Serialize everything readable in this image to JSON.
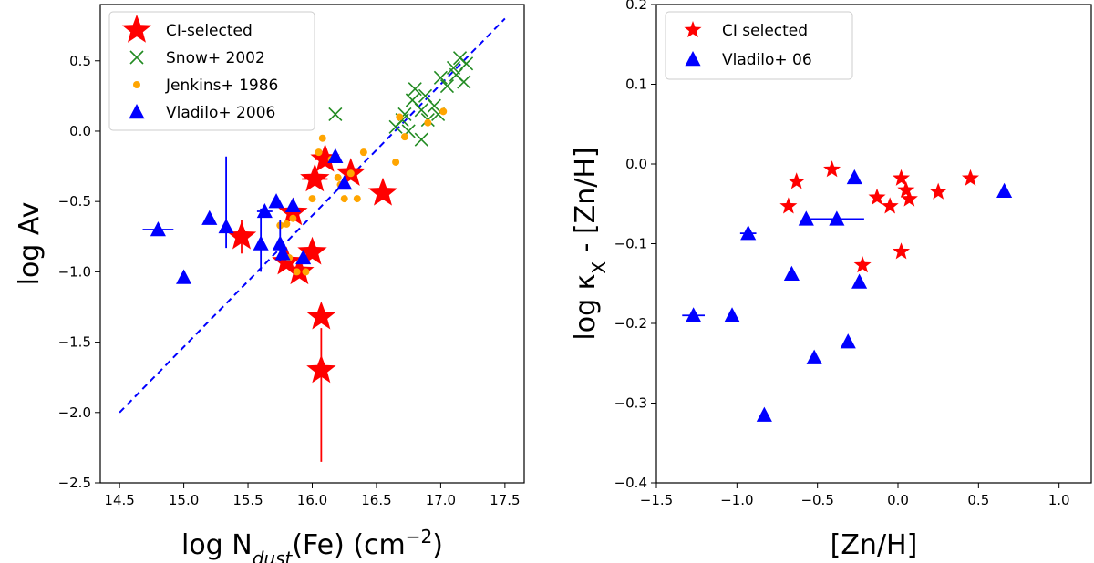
{
  "chart_data": [
    {
      "type": "scatter",
      "xlabel": "log N_dust(Fe) (cm^-2)",
      "xlabel_parts": {
        "pre": "log N",
        "sub": "dust",
        "mid": "(Fe) (cm",
        "sup": "−2",
        "post": ")"
      },
      "ylabel": "log Av",
      "xlim": [
        14.35,
        17.65
      ],
      "ylim": [
        -2.5,
        0.9
      ],
      "xticks": [
        14.5,
        15.0,
        15.5,
        16.0,
        16.5,
        17.0,
        17.5
      ],
      "xtick_labels": [
        "14.5",
        "15.0",
        "15.5",
        "16.0",
        "16.5",
        "17.0",
        "17.5"
      ],
      "yticks": [
        -2.5,
        -2.0,
        -1.5,
        -1.0,
        -0.5,
        0.0,
        0.5
      ],
      "ytick_labels": [
        "−2.5",
        "−2.0",
        "−1.5",
        "−1.0",
        "−0.5",
        "0.0",
        "0.5"
      ],
      "legend_position": "top-left",
      "fit_line": {
        "x": [
          14.5,
          17.5
        ],
        "y": [
          -2.0,
          0.8
        ],
        "color": "#0000ff",
        "style": "dashed"
      },
      "series": [
        {
          "name": "CI-selected",
          "marker": "star",
          "color": "#ff0000",
          "size": "large",
          "points": [
            {
              "x": 15.45,
              "y": -0.75,
              "yerr": [
                0.12,
                0.12
              ]
            },
            {
              "x": 15.8,
              "y": -0.93
            },
            {
              "x": 15.85,
              "y": -0.58
            },
            {
              "x": 15.9,
              "y": -1.0
            },
            {
              "x": 16.0,
              "y": -0.86
            },
            {
              "x": 16.02,
              "y": -0.34,
              "xerr": [
                0.1,
                0.1
              ]
            },
            {
              "x": 16.07,
              "y": -1.32
            },
            {
              "x": 16.07,
              "y": -1.7,
              "yerr": [
                0.65,
                0.3
              ]
            },
            {
              "x": 16.1,
              "y": -0.2,
              "xerr": [
                0.08,
                0.08
              ]
            },
            {
              "x": 16.3,
              "y": -0.3
            },
            {
              "x": 16.55,
              "y": -0.44
            }
          ]
        },
        {
          "name": "Snow+ 2002",
          "marker": "x",
          "color": "#228b22",
          "points": [
            {
              "x": 16.18,
              "y": 0.12
            },
            {
              "x": 16.65,
              "y": 0.03
            },
            {
              "x": 16.72,
              "y": 0.12
            },
            {
              "x": 16.75,
              "y": 0.0
            },
            {
              "x": 16.78,
              "y": 0.22
            },
            {
              "x": 16.8,
              "y": 0.3
            },
            {
              "x": 16.85,
              "y": 0.15
            },
            {
              "x": 16.88,
              "y": 0.25
            },
            {
              "x": 16.9,
              "y": 0.08
            },
            {
              "x": 16.95,
              "y": 0.18
            },
            {
              "x": 16.98,
              "y": 0.12
            },
            {
              "x": 17.0,
              "y": 0.38
            },
            {
              "x": 17.05,
              "y": 0.32
            },
            {
              "x": 17.1,
              "y": 0.45
            },
            {
              "x": 17.12,
              "y": 0.4
            },
            {
              "x": 17.15,
              "y": 0.52
            },
            {
              "x": 17.2,
              "y": 0.48
            },
            {
              "x": 16.85,
              "y": -0.06
            },
            {
              "x": 16.7,
              "y": 0.08
            },
            {
              "x": 17.18,
              "y": 0.35
            }
          ]
        },
        {
          "name": "Jenkins+ 1986",
          "marker": "circle",
          "color": "#ffa500",
          "points": [
            {
              "x": 15.75,
              "y": -0.67
            },
            {
              "x": 15.8,
              "y": -0.66
            },
            {
              "x": 15.85,
              "y": -0.62
            },
            {
              "x": 15.88,
              "y": -1.0
            },
            {
              "x": 15.95,
              "y": -1.0
            },
            {
              "x": 16.0,
              "y": -0.48
            },
            {
              "x": 16.05,
              "y": -0.15
            },
            {
              "x": 16.08,
              "y": -0.05
            },
            {
              "x": 16.15,
              "y": -0.2
            },
            {
              "x": 16.2,
              "y": -0.33
            },
            {
              "x": 16.22,
              "y": -0.38
            },
            {
              "x": 16.25,
              "y": -0.48
            },
            {
              "x": 16.3,
              "y": -0.3
            },
            {
              "x": 16.35,
              "y": -0.48
            },
            {
              "x": 16.4,
              "y": -0.15
            },
            {
              "x": 16.65,
              "y": -0.22
            },
            {
              "x": 16.68,
              "y": 0.1
            },
            {
              "x": 16.72,
              "y": -0.04
            },
            {
              "x": 16.9,
              "y": 0.06
            },
            {
              "x": 17.02,
              "y": 0.14
            },
            {
              "x": 15.82,
              "y": -0.9
            }
          ]
        },
        {
          "name": "Vladilo+ 2006",
          "marker": "triangle",
          "color": "#0000ff",
          "points": [
            {
              "x": 14.8,
              "y": -0.7,
              "xerr": [
                0.12,
                0.12
              ]
            },
            {
              "x": 15.0,
              "y": -1.04
            },
            {
              "x": 15.2,
              "y": -0.62
            },
            {
              "x": 15.33,
              "y": -0.68,
              "yerr": [
                0.15,
                0.5
              ]
            },
            {
              "x": 15.6,
              "y": -0.8,
              "yerr": [
                0.2,
                0.25
              ]
            },
            {
              "x": 15.63,
              "y": -0.57,
              "xerr": [
                0.06,
                0.06
              ]
            },
            {
              "x": 15.72,
              "y": -0.5
            },
            {
              "x": 15.75,
              "y": -0.8,
              "yerr": [
                0.12,
                0.17
              ]
            },
            {
              "x": 15.77,
              "y": -0.87
            },
            {
              "x": 15.85,
              "y": -0.53
            },
            {
              "x": 15.93,
              "y": -0.9
            },
            {
              "x": 16.18,
              "y": -0.18
            },
            {
              "x": 16.25,
              "y": -0.37
            }
          ]
        }
      ]
    },
    {
      "type": "scatter",
      "xlabel": "[Zn/H]",
      "ylabel": "log κ_X - [Zn/H]",
      "ylabel_parts": {
        "pre": "log κ",
        "sub": "X",
        "post": " - [Zn/H]"
      },
      "xlim": [
        -1.5,
        1.2
      ],
      "ylim": [
        -0.4,
        0.2
      ],
      "xticks": [
        -1.5,
        -1.0,
        -0.5,
        0.0,
        0.5,
        1.0
      ],
      "xtick_labels": [
        "−1.5",
        "−1.0",
        "−0.5",
        "0.0",
        "0.5",
        "1.0"
      ],
      "yticks": [
        -0.4,
        -0.3,
        -0.2,
        -0.1,
        0.0,
        0.1,
        0.2
      ],
      "ytick_labels": [
        "−0.4",
        "−0.3",
        "−0.2",
        "−0.1",
        "0.0",
        "0.1",
        "0.2"
      ],
      "legend_position": "top-left",
      "series": [
        {
          "name": "CI selected",
          "marker": "star",
          "color": "#ff0000",
          "size": "small",
          "points": [
            {
              "x": -0.68,
              "y": -0.053
            },
            {
              "x": -0.63,
              "y": -0.022
            },
            {
              "x": -0.41,
              "y": -0.007
            },
            {
              "x": -0.22,
              "y": -0.127
            },
            {
              "x": -0.13,
              "y": -0.042
            },
            {
              "x": -0.05,
              "y": -0.053
            },
            {
              "x": 0.02,
              "y": -0.018
            },
            {
              "x": 0.02,
              "y": -0.11
            },
            {
              "x": 0.05,
              "y": -0.033
            },
            {
              "x": 0.07,
              "y": -0.044
            },
            {
              "x": 0.25,
              "y": -0.035
            },
            {
              "x": 0.45,
              "y": -0.018
            }
          ]
        },
        {
          "name": "Vladilo+ 06",
          "marker": "triangle",
          "color": "#0000ff",
          "points": [
            {
              "x": -1.27,
              "y": -0.19,
              "xerr": [
                0.07,
                0.07
              ]
            },
            {
              "x": -1.03,
              "y": -0.19
            },
            {
              "x": -0.93,
              "y": -0.087,
              "xerr": [
                0.05,
                0.05
              ]
            },
            {
              "x": -0.83,
              "y": -0.315
            },
            {
              "x": -0.66,
              "y": -0.138
            },
            {
              "x": -0.57,
              "y": -0.069
            },
            {
              "x": -0.52,
              "y": -0.243
            },
            {
              "x": -0.38,
              "y": -0.069,
              "xerr": [
                0.17,
                0.17
              ]
            },
            {
              "x": -0.31,
              "y": -0.223
            },
            {
              "x": -0.27,
              "y": -0.017
            },
            {
              "x": -0.24,
              "y": -0.148
            },
            {
              "x": 0.66,
              "y": -0.034
            }
          ]
        }
      ]
    }
  ]
}
